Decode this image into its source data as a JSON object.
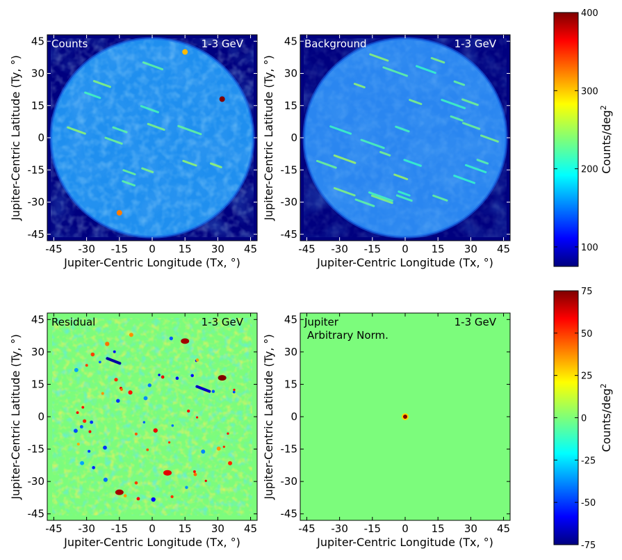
{
  "colors": {
    "background_fill": "#00007f",
    "residual_fill": "#7cfc7c",
    "panel_text_light": "#ffffff",
    "panel_text_dark": "#000000"
  },
  "colorbars": [
    {
      "label": "Counts/deg$^2$",
      "label_text": "Counts/deg",
      "label_sup": "2",
      "range": [
        75,
        400
      ],
      "ticks": [
        "100",
        "200",
        "300",
        "400"
      ],
      "tick_values": [
        100,
        200,
        300,
        400
      ]
    },
    {
      "label_text": "Counts/deg",
      "label_sup": "2",
      "range": [
        -75,
        75
      ],
      "ticks": [
        "-75",
        "-50",
        "-25",
        "0",
        "25",
        "50",
        "75"
      ],
      "tick_values": [
        -75,
        -50,
        -25,
        0,
        25,
        50,
        75
      ]
    }
  ],
  "chart_data": [
    {
      "type": "heatmap",
      "panel": "counts",
      "title_left": "Counts",
      "title_right": "1-3 GeV",
      "xlabel": "Jupiter-Centric Longitude (Tx, $^\\circ$)",
      "ylabel": "Jupiter-Centric Latitude (Ty, $^\\circ$)",
      "xlim": [
        -48,
        48
      ],
      "ylim": [
        -48,
        48
      ],
      "xticks": [
        "-45",
        "-30",
        "-15",
        "0",
        "15",
        "30",
        "45"
      ],
      "yticks": [
        "-45",
        "-30",
        "-15",
        "0",
        "15",
        "30",
        "45"
      ],
      "colorbar": 0,
      "hotspots": [
        {
          "x": 32,
          "y": 18,
          "value": 400
        },
        {
          "x": -15,
          "y": -35,
          "value": 320
        },
        {
          "x": 15,
          "y": 40,
          "value": 300
        }
      ]
    },
    {
      "type": "heatmap",
      "panel": "background",
      "title_left": "Background",
      "title_right": "1-3 GeV",
      "xlabel": "Jupiter-Centric Longitude (Tx, $^\\circ$)",
      "ylabel": "Jupiter-Centric Latitude (Ty, $^\\circ$)",
      "xlim": [
        -48,
        48
      ],
      "ylim": [
        -48,
        48
      ],
      "xticks": [
        "-45",
        "-30",
        "-15",
        "0",
        "15",
        "30",
        "45"
      ],
      "yticks": [
        "-45",
        "-30",
        "-15",
        "0",
        "15",
        "30",
        "45"
      ],
      "colorbar": 0
    },
    {
      "type": "heatmap",
      "panel": "residual",
      "title_left": "Residual",
      "title_right": "1-3 GeV",
      "xlabel": "Jupiter-Centric Longitude (Tx, $^\\circ$)",
      "ylabel": "Jupiter-Centric Latitude (Ty, $^\\circ$)",
      "xlim": [
        -48,
        48
      ],
      "ylim": [
        -48,
        48
      ],
      "xticks": [
        "-45",
        "-30",
        "-15",
        "0",
        "15",
        "30",
        "45"
      ],
      "yticks": [
        "-45",
        "-30",
        "-15",
        "0",
        "15",
        "30",
        "45"
      ],
      "colorbar": 1,
      "hotspots": [
        {
          "x": 32,
          "y": 18,
          "value": 75
        },
        {
          "x": 15,
          "y": 35,
          "value": 70
        },
        {
          "x": -15,
          "y": -35,
          "value": 70
        },
        {
          "x": 7,
          "y": -26,
          "value": 60
        }
      ],
      "coldspots": [
        {
          "x": -18,
          "y": 26,
          "value": -70
        },
        {
          "x": 23,
          "y": 13,
          "value": -65
        }
      ]
    },
    {
      "type": "heatmap",
      "panel": "jupiter",
      "title_left": "Jupiter",
      "title_left2": "Arbitrary Norm.",
      "title_right": "1-3 GeV",
      "xlabel": "Jupiter-Centric Longitude (Tx, $^\\circ$)",
      "ylabel": "Jupiter-Centric Latitude (Ty, $^\\circ$)",
      "xlim": [
        -48,
        48
      ],
      "ylim": [
        -48,
        48
      ],
      "xticks": [
        "-45",
        "-30",
        "-15",
        "0",
        "15",
        "30",
        "45"
      ],
      "yticks": [
        "-45",
        "-30",
        "-15",
        "0",
        "15",
        "30",
        "45"
      ],
      "colorbar": 1,
      "hotspots": [
        {
          "x": 0,
          "y": 0,
          "value": 75
        }
      ]
    }
  ]
}
